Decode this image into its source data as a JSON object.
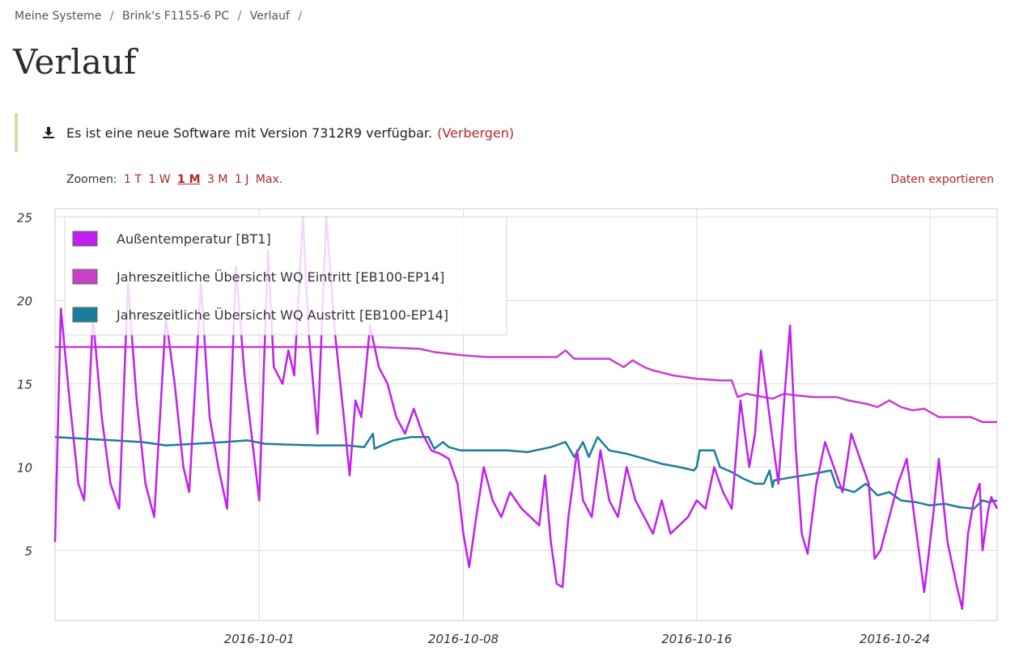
{
  "breadcrumb": {
    "items": [
      "Meine Systeme",
      "Brink's F1155-6 PC",
      "Verlauf"
    ],
    "separator": "/"
  },
  "page": {
    "title": "Verlauf"
  },
  "notice": {
    "text": "Es ist eine neue Software mit Version 7312R9 verfügbar.",
    "hide_label": "(Verbergen)",
    "icon": "download-icon"
  },
  "toolbar": {
    "zoom_label": "Zoomen:",
    "zoom_options": [
      "1 T",
      "1 W",
      "1 M",
      "3 M",
      "1 J",
      "Max."
    ],
    "zoom_active": "1 M",
    "export_label": "Daten exportieren",
    "link_color": "#b02828"
  },
  "chart_data": {
    "type": "line",
    "x_ticks": [
      "2016-10-01",
      "2016-10-08",
      "2016-10-16",
      "2016-10-24"
    ],
    "y_ticks": [
      "5",
      "10",
      "15",
      "20",
      "25"
    ],
    "xlim": [
      "2016-09-24",
      "2016-10-24"
    ],
    "ylim": [
      0.8,
      25.5
    ],
    "grid": true,
    "legend_position": "top-left",
    "series": [
      {
        "name": "Außentemperatur [BT1]",
        "color": "#c020f0",
        "points": [
          [
            0.0,
            5.5
          ],
          [
            0.2,
            19.5
          ],
          [
            0.5,
            14.0
          ],
          [
            0.8,
            9.0
          ],
          [
            1.0,
            8.0
          ],
          [
            1.3,
            19.0
          ],
          [
            1.6,
            13.0
          ],
          [
            1.9,
            9.0
          ],
          [
            2.2,
            7.5
          ],
          [
            2.5,
            21.0
          ],
          [
            2.8,
            14.0
          ],
          [
            3.1,
            9.0
          ],
          [
            3.4,
            7.0
          ],
          [
            3.8,
            19.0
          ],
          [
            4.1,
            15.0
          ],
          [
            4.4,
            10.0
          ],
          [
            4.6,
            8.5
          ],
          [
            5.0,
            21.0
          ],
          [
            5.3,
            13.0
          ],
          [
            5.6,
            10.0
          ],
          [
            5.9,
            7.5
          ],
          [
            6.2,
            22.0
          ],
          [
            6.5,
            15.5
          ],
          [
            6.8,
            11.0
          ],
          [
            7.0,
            8.0
          ],
          [
            7.3,
            23.0
          ],
          [
            7.5,
            16.0
          ],
          [
            7.8,
            15.0
          ],
          [
            8.0,
            17.0
          ],
          [
            8.2,
            15.5
          ],
          [
            8.5,
            25.0
          ],
          [
            8.7,
            18.0
          ],
          [
            9.0,
            12.0
          ],
          [
            9.3,
            25.0
          ],
          [
            9.6,
            18.0
          ],
          [
            9.9,
            13.0
          ],
          [
            10.1,
            9.5
          ],
          [
            10.3,
            14.0
          ],
          [
            10.5,
            13.0
          ],
          [
            10.8,
            18.5
          ],
          [
            11.1,
            16.0
          ],
          [
            11.4,
            15.0
          ],
          [
            11.7,
            13.0
          ],
          [
            12.0,
            12.0
          ],
          [
            12.3,
            13.5
          ],
          [
            12.6,
            12.0
          ],
          [
            12.9,
            11.0
          ],
          [
            13.2,
            10.8
          ],
          [
            13.5,
            10.5
          ],
          [
            13.8,
            9.0
          ],
          [
            14.0,
            6.0
          ],
          [
            14.2,
            4.0
          ],
          [
            14.4,
            6.5
          ],
          [
            14.7,
            10.0
          ],
          [
            15.0,
            8.0
          ],
          [
            15.3,
            7.0
          ],
          [
            15.6,
            8.5
          ],
          [
            16.0,
            7.5
          ],
          [
            16.3,
            7.0
          ],
          [
            16.6,
            6.5
          ],
          [
            16.8,
            9.5
          ],
          [
            17.0,
            5.5
          ],
          [
            17.2,
            3.0
          ],
          [
            17.4,
            2.8
          ],
          [
            17.6,
            7.0
          ],
          [
            17.9,
            11.0
          ],
          [
            18.1,
            8.0
          ],
          [
            18.4,
            7.0
          ],
          [
            18.7,
            11.0
          ],
          [
            19.0,
            8.0
          ],
          [
            19.3,
            7.0
          ],
          [
            19.6,
            10.0
          ],
          [
            19.9,
            8.0
          ],
          [
            20.2,
            7.0
          ],
          [
            20.5,
            6.0
          ],
          [
            20.8,
            8.0
          ],
          [
            21.1,
            6.0
          ],
          [
            21.4,
            6.5
          ],
          [
            21.7,
            7.0
          ],
          [
            22.0,
            8.0
          ],
          [
            22.3,
            7.5
          ],
          [
            22.6,
            10.0
          ],
          [
            22.9,
            8.5
          ],
          [
            23.2,
            7.5
          ],
          [
            23.5,
            14.0
          ],
          [
            23.8,
            10.0
          ],
          [
            24.0,
            12.0
          ],
          [
            24.2,
            17.0
          ],
          [
            24.5,
            13.0
          ],
          [
            24.8,
            9.0
          ],
          [
            25.0,
            14.0
          ],
          [
            25.2,
            18.5
          ],
          [
            25.4,
            11.0
          ],
          [
            25.6,
            6.0
          ],
          [
            25.8,
            4.8
          ],
          [
            26.1,
            9.0
          ],
          [
            26.4,
            11.5
          ],
          [
            26.7,
            10.0
          ],
          [
            27.0,
            8.5
          ],
          [
            27.3,
            12.0
          ],
          [
            27.6,
            10.5
          ],
          [
            27.9,
            9.0
          ],
          [
            28.1,
            4.5
          ],
          [
            28.3,
            5.0
          ],
          [
            28.6,
            7.0
          ],
          [
            28.9,
            9.0
          ],
          [
            29.2,
            10.5
          ],
          [
            29.5,
            6.5
          ],
          [
            29.8,
            2.5
          ],
          [
            30.1,
            7.0
          ],
          [
            30.3,
            10.5
          ],
          [
            30.6,
            5.5
          ],
          [
            30.9,
            3.0
          ],
          [
            31.1,
            1.5
          ],
          [
            31.3,
            6.0
          ],
          [
            31.5,
            8.0
          ],
          [
            31.7,
            9.0
          ],
          [
            31.8,
            5.0
          ],
          [
            32.0,
            7.5
          ],
          [
            32.1,
            8.2
          ],
          [
            32.3,
            7.5
          ]
        ]
      },
      {
        "name": "Jahreszeitliche Übersicht WQ Eintritt [EB100-EP14]",
        "color": "#c840c8",
        "points": [
          [
            0.0,
            17.2
          ],
          [
            10.5,
            17.2
          ],
          [
            11.0,
            17.2
          ],
          [
            12.5,
            17.1
          ],
          [
            13.0,
            16.9
          ],
          [
            14.0,
            16.7
          ],
          [
            14.8,
            16.6
          ],
          [
            16.0,
            16.6
          ],
          [
            17.2,
            16.6
          ],
          [
            17.5,
            17.0
          ],
          [
            17.8,
            16.5
          ],
          [
            18.5,
            16.5
          ],
          [
            19.0,
            16.5
          ],
          [
            19.5,
            16.0
          ],
          [
            19.8,
            16.4
          ],
          [
            20.2,
            16.0
          ],
          [
            20.5,
            15.8
          ],
          [
            21.2,
            15.5
          ],
          [
            22.0,
            15.3
          ],
          [
            22.8,
            15.2
          ],
          [
            23.2,
            15.2
          ],
          [
            23.4,
            14.2
          ],
          [
            23.7,
            14.4
          ],
          [
            24.0,
            14.3
          ],
          [
            24.6,
            14.1
          ],
          [
            25.0,
            14.4
          ],
          [
            25.4,
            14.3
          ],
          [
            26.0,
            14.2
          ],
          [
            26.8,
            14.2
          ],
          [
            27.2,
            14.0
          ],
          [
            27.8,
            13.8
          ],
          [
            28.2,
            13.6
          ],
          [
            28.6,
            14.0
          ],
          [
            29.0,
            13.6
          ],
          [
            29.4,
            13.4
          ],
          [
            29.8,
            13.5
          ],
          [
            30.3,
            13.0
          ],
          [
            30.8,
            13.0
          ],
          [
            31.4,
            13.0
          ],
          [
            31.8,
            12.7
          ],
          [
            32.3,
            12.7
          ]
        ]
      },
      {
        "name": "Jahreszeitliche Übersicht WQ Austritt [EB100-EP14]",
        "color": "#1a7d9c",
        "points": [
          [
            0.0,
            11.8
          ],
          [
            1.0,
            11.7
          ],
          [
            2.0,
            11.6
          ],
          [
            3.0,
            11.5
          ],
          [
            3.8,
            11.3
          ],
          [
            4.8,
            11.4
          ],
          [
            5.8,
            11.5
          ],
          [
            6.6,
            11.6
          ],
          [
            7.2,
            11.4
          ],
          [
            8.0,
            11.35
          ],
          [
            9.0,
            11.3
          ],
          [
            10.0,
            11.3
          ],
          [
            10.6,
            11.2
          ],
          [
            10.9,
            12.0
          ],
          [
            10.95,
            11.1
          ],
          [
            11.6,
            11.6
          ],
          [
            12.2,
            11.8
          ],
          [
            12.8,
            11.8
          ],
          [
            13.0,
            11.1
          ],
          [
            13.3,
            11.5
          ],
          [
            13.5,
            11.2
          ],
          [
            13.9,
            11.0
          ],
          [
            14.6,
            11.0
          ],
          [
            15.5,
            11.0
          ],
          [
            16.2,
            10.9
          ],
          [
            17.0,
            11.2
          ],
          [
            17.5,
            11.5
          ],
          [
            17.8,
            10.6
          ],
          [
            18.1,
            11.5
          ],
          [
            18.3,
            10.6
          ],
          [
            18.6,
            11.8
          ],
          [
            19.0,
            11.0
          ],
          [
            19.6,
            10.8
          ],
          [
            20.2,
            10.5
          ],
          [
            20.8,
            10.2
          ],
          [
            21.4,
            10.0
          ],
          [
            21.9,
            9.8
          ],
          [
            22.0,
            10.0
          ],
          [
            22.1,
            11.0
          ],
          [
            22.6,
            11.0
          ],
          [
            22.8,
            10.0
          ],
          [
            23.2,
            9.7
          ],
          [
            23.6,
            9.3
          ],
          [
            24.0,
            9.0
          ],
          [
            24.3,
            9.0
          ],
          [
            24.5,
            9.8
          ],
          [
            24.6,
            8.8
          ],
          [
            24.65,
            9.2
          ],
          [
            25.3,
            9.4
          ],
          [
            26.0,
            9.6
          ],
          [
            26.6,
            9.8
          ],
          [
            26.8,
            8.8
          ],
          [
            27.4,
            8.5
          ],
          [
            27.8,
            9.0
          ],
          [
            28.2,
            8.3
          ],
          [
            28.6,
            8.5
          ],
          [
            29.0,
            8.0
          ],
          [
            29.5,
            7.9
          ],
          [
            30.0,
            7.7
          ],
          [
            30.5,
            7.8
          ],
          [
            31.0,
            7.6
          ],
          [
            31.5,
            7.5
          ],
          [
            31.8,
            8.0
          ],
          [
            32.0,
            7.9
          ],
          [
            32.3,
            8.0
          ]
        ]
      }
    ]
  }
}
